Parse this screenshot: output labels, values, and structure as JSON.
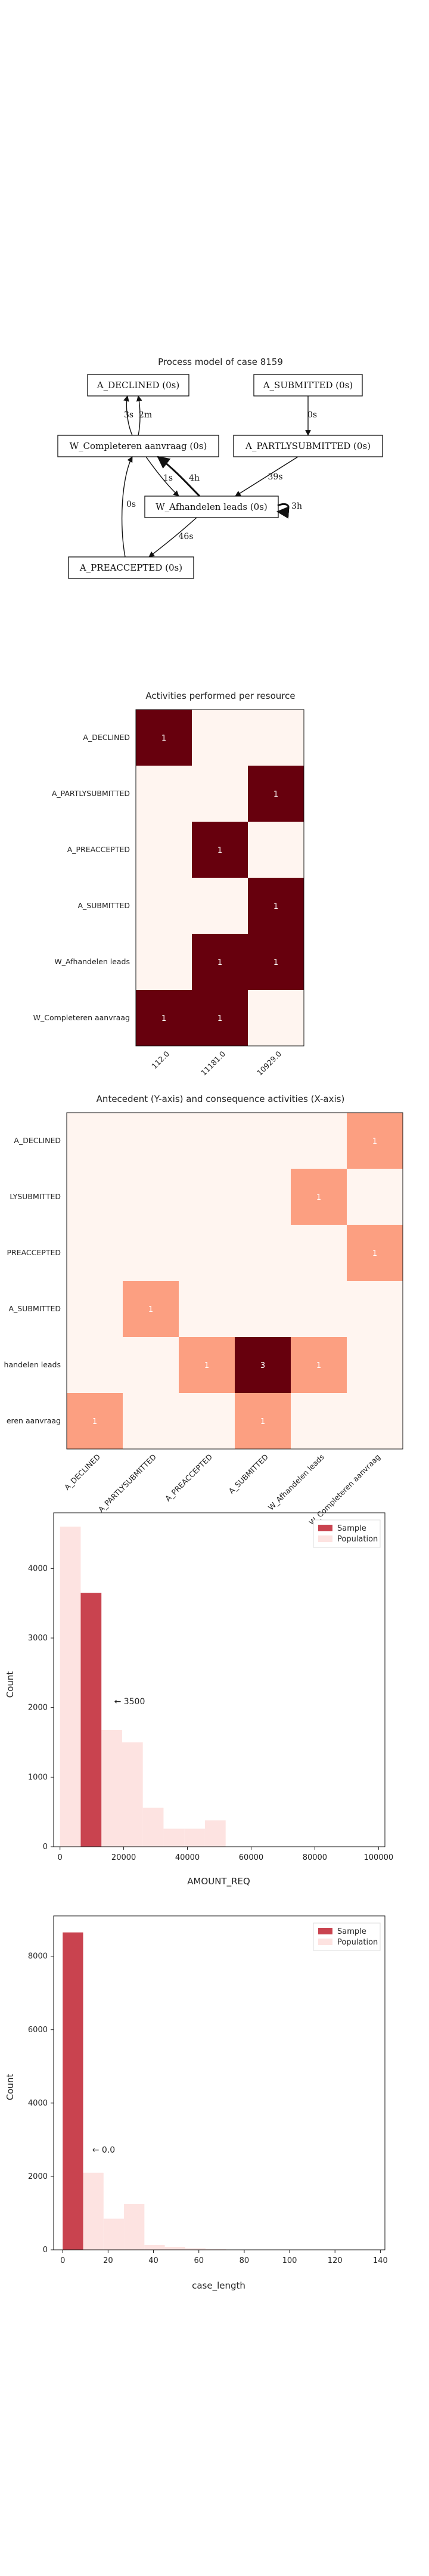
{
  "process_model": {
    "title": "Process model of case 8159",
    "nodes": [
      {
        "id": "A_DECLINED",
        "label": "A_DECLINED (0s)"
      },
      {
        "id": "A_SUBMITTED",
        "label": "A_SUBMITTED (0s)"
      },
      {
        "id": "W_Completeren",
        "label": "W_Completeren aanvraag (0s)"
      },
      {
        "id": "A_PARTLYSUBMITTED",
        "label": "A_PARTLYSUBMITTED (0s)"
      },
      {
        "id": "W_Afhandelen",
        "label": "W_Afhandelen leads (0s)"
      },
      {
        "id": "A_PREACCEPTED",
        "label": "A_PREACCEPTED (0s)"
      }
    ],
    "edges": [
      {
        "from": "W_Completeren",
        "to": "A_DECLINED",
        "label": "3s"
      },
      {
        "from": "A_DECLINED",
        "to": "W_Completeren",
        "label": "2m"
      },
      {
        "from": "A_SUBMITTED",
        "to": "A_PARTLYSUBMITTED",
        "label": "0s"
      },
      {
        "from": "W_Completeren",
        "to": "W_Afhandelen",
        "label": "1s"
      },
      {
        "from": "W_Afhandelen",
        "to": "W_Completeren",
        "label": "4h"
      },
      {
        "from": "A_PARTLYSUBMITTED",
        "to": "W_Afhandelen",
        "label": "39s"
      },
      {
        "from": "W_Afhandelen",
        "to": "W_Afhandelen",
        "label": "3h"
      },
      {
        "from": "A_PREACCEPTED",
        "to": "W_Completeren",
        "label": "0s"
      },
      {
        "from": "W_Afhandelen",
        "to": "A_PREACCEPTED",
        "label": "46s"
      }
    ]
  },
  "chart_data": [
    {
      "type": "heatmap",
      "title": "Activities performed per resource",
      "x": [
        "112.0",
        "11181.0",
        "10929.0"
      ],
      "y": [
        "A_DECLINED",
        "A_PARTLYSUBMITTED",
        "A_PREACCEPTED",
        "A_SUBMITTED",
        "W_Afhandelen leads",
        "W_Completeren aanvraag"
      ],
      "values": [
        [
          1,
          0,
          0
        ],
        [
          0,
          0,
          1
        ],
        [
          0,
          1,
          0
        ],
        [
          0,
          0,
          1
        ],
        [
          0,
          1,
          1
        ],
        [
          1,
          1,
          0
        ]
      ],
      "colors": {
        "high": "#67000d",
        "low": "#fff5f0",
        "text": "#ffffff"
      }
    },
    {
      "type": "heatmap",
      "title": "Antecedent (Y-axis) and consequence activities (X-axis)",
      "x": [
        "A_DECLINED",
        "A_PARTLYSUBMITTED",
        "A_PREACCEPTED",
        "A_SUBMITTED",
        "W_Afhandelen leads",
        "W_Completeren aanvraag"
      ],
      "y": [
        "A_DECLINED",
        "A_PARTLYSUBMITTED",
        "A_PREACCEPTED",
        "A_SUBMITTED",
        "W_Afhandelen leads",
        "W_Completeren aanvraag"
      ],
      "y_tick_labels_visible": [
        "A_DECLINED",
        "LYSUBMITTED",
        "PREACCEPTED",
        "A_SUBMITTED",
        "handelen leads",
        "eren aanvraag"
      ],
      "values": [
        [
          0,
          0,
          0,
          0,
          0,
          1
        ],
        [
          0,
          0,
          0,
          0,
          1,
          0
        ],
        [
          0,
          0,
          0,
          0,
          0,
          1
        ],
        [
          0,
          1,
          0,
          0,
          0,
          0
        ],
        [
          0,
          0,
          1,
          3,
          1,
          0
        ],
        [
          1,
          0,
          0,
          1,
          0,
          0
        ]
      ],
      "colors": {
        "high": "#67000d",
        "mid": "#fc9f81",
        "low": "#fff5f0",
        "text": "#ffffff"
      }
    },
    {
      "type": "bar",
      "xlabel": "AMOUNT_REQ",
      "ylabel": "Count",
      "xlim": [
        -2000,
        102000
      ],
      "ylim": [
        0,
        4800
      ],
      "xticks": [
        0,
        20000,
        40000,
        60000,
        80000,
        100000
      ],
      "yticks": [
        0,
        1000,
        2000,
        3000,
        4000
      ],
      "bin_width": 6500,
      "series": [
        {
          "name": "Population",
          "bins": [
            {
              "x0": 0,
              "value": 4600
            },
            {
              "x0": 6500,
              "value": 3650
            },
            {
              "x0": 13000,
              "value": 1680
            },
            {
              "x0": 19500,
              "value": 1500
            },
            {
              "x0": 26000,
              "value": 560
            },
            {
              "x0": 32500,
              "value": 260
            },
            {
              "x0": 39000,
              "value": 260
            },
            {
              "x0": 45500,
              "value": 380
            }
          ]
        },
        {
          "name": "Sample",
          "bins": [
            {
              "x0": 6500,
              "value": 3650
            }
          ]
        }
      ],
      "annotation": "← 3500",
      "annotation_at": {
        "x": 17000,
        "y": 2050
      },
      "legend": "top-right",
      "colors": {
        "Sample": "#c9434f",
        "Population": "#fde3e1"
      }
    },
    {
      "type": "bar",
      "xlabel": "case_length",
      "ylabel": "Count",
      "xlim": [
        -4,
        142
      ],
      "ylim": [
        0,
        9100
      ],
      "xticks": [
        0,
        20,
        40,
        60,
        80,
        100,
        120,
        140
      ],
      "yticks": [
        0,
        2000,
        4000,
        6000,
        8000
      ],
      "bin_width": 9,
      "series": [
        {
          "name": "Population",
          "bins": [
            {
              "x0": 0,
              "value": 8650
            },
            {
              "x0": 9,
              "value": 2100
            },
            {
              "x0": 18,
              "value": 850
            },
            {
              "x0": 27,
              "value": 1250
            },
            {
              "x0": 36,
              "value": 130
            },
            {
              "x0": 45,
              "value": 80
            },
            {
              "x0": 54,
              "value": 40
            },
            {
              "x0": 63,
              "value": 15
            }
          ]
        },
        {
          "name": "Sample",
          "bins": [
            {
              "x0": 0,
              "value": 8650
            }
          ]
        }
      ],
      "annotation": "← 0.0",
      "annotation_at": {
        "x": 13,
        "y": 2650
      },
      "legend": "top-right",
      "colors": {
        "Sample": "#c9434f",
        "Population": "#fde3e1"
      }
    }
  ]
}
